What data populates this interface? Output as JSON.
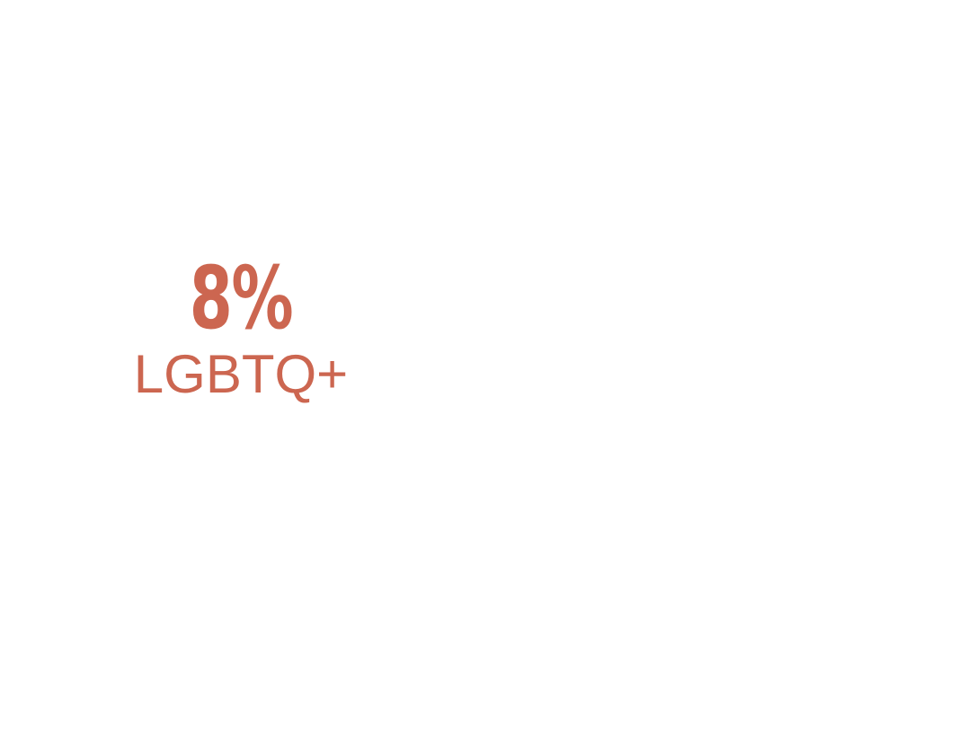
{
  "stat": {
    "value": "8%",
    "label": "LGBTQ+"
  },
  "colors": {
    "accent": "#cc6650",
    "background": "#ffffff"
  }
}
